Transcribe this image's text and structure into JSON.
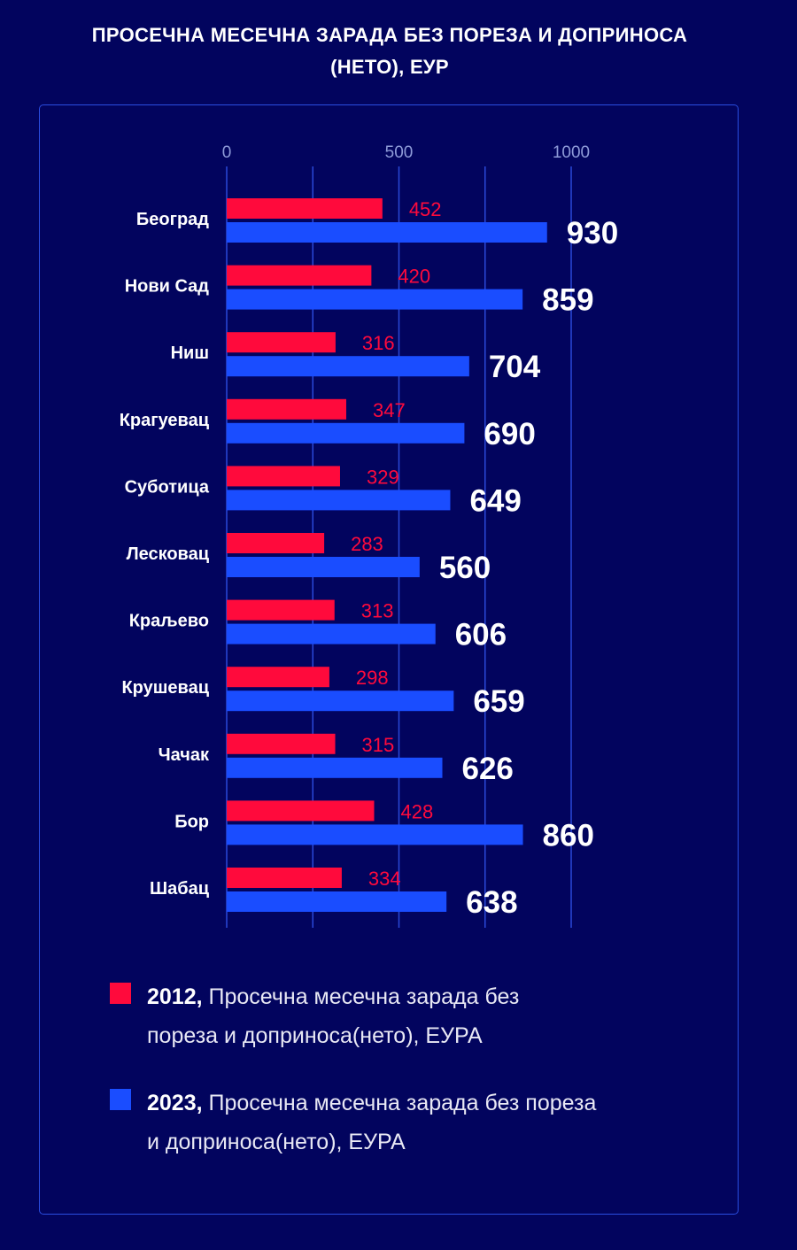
{
  "title": {
    "line1": "ПРОСЕЧНА МЕСЕЧНА ЗАРАДА БЕЗ ПОРЕЗА И ДОПРИНОСА",
    "line2": "(НЕТО), ЕУР"
  },
  "colors": {
    "background": "#02045e",
    "series_2012": "#ff0a3c",
    "series_2023": "#1a4dff",
    "grid": "#2a48d8",
    "axis_tick": "#8e9bd8"
  },
  "chart_data": {
    "type": "bar",
    "orientation": "horizontal",
    "title": "ПРОСЕЧНА МЕСЕЧНА ЗАРАДА БЕЗ ПОРЕЗА И ДОПРИНОСА (НЕТО), ЕУР",
    "categories": [
      "Београд",
      "Нови Сад",
      "Ниш",
      "Крагуевац",
      "Суботица",
      "Лесковац",
      "Краљево",
      "Крушевац",
      "Чачак",
      "Бор",
      "Шабац"
    ],
    "series": [
      {
        "name": "2012",
        "label_bold": "2012,",
        "label_rest": " Просечна месечна зарада без",
        "label_line2": "пореза и доприноса(нето), ЕУРА",
        "values": [
          452,
          420,
          316,
          347,
          329,
          283,
          313,
          298,
          315,
          428,
          334
        ],
        "color": "#ff0a3c"
      },
      {
        "name": "2023",
        "label_bold": "2023,",
        "label_rest": " Просечна месечна зарада без пореза",
        "label_line2": "и доприноса(нето), ЕУРА",
        "values": [
          930,
          859,
          704,
          690,
          649,
          560,
          606,
          659,
          626,
          860,
          638
        ],
        "color": "#1a4dff"
      }
    ],
    "x_ticks": [
      "0",
      "500",
      "1000"
    ],
    "x_range": [
      0,
      1050
    ],
    "grid": true,
    "legend_position": "bottom"
  }
}
